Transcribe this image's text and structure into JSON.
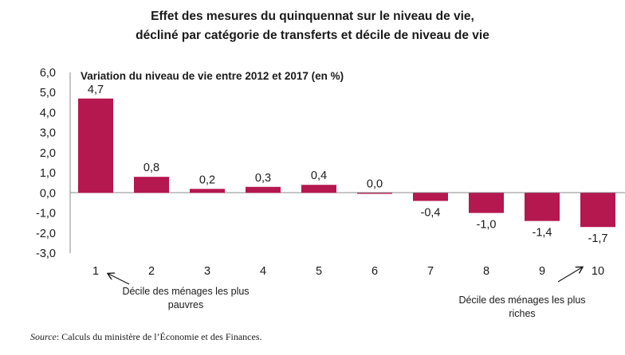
{
  "title_line1": "Effet des mesures du quinquennat sur le niveau de vie,",
  "title_line2": "décliné par catégorie de transferts et décile de niveau de vie",
  "chart_data": {
    "type": "bar",
    "ylabel": "Variation du niveau de vie entre 2012 et 2017 (en %)",
    "categories": [
      "1",
      "2",
      "3",
      "4",
      "5",
      "6",
      "7",
      "8",
      "9",
      "10"
    ],
    "values": [
      4.7,
      0.8,
      0.2,
      0.3,
      0.4,
      0.0,
      -0.4,
      -1.0,
      -1.4,
      -1.7
    ],
    "value_labels": [
      "4,7",
      "0,8",
      "0,2",
      "0,3",
      "0,4",
      "0,0",
      "-0,4",
      "-1,0",
      "-1,4",
      "-1,7"
    ],
    "ylim": [
      -3.0,
      6.0
    ],
    "yticks": [
      "6,0",
      "5,0",
      "4,0",
      "3,0",
      "2,0",
      "1,0",
      "0,0",
      "-1,0",
      "-2,0",
      "-3,0"
    ],
    "ytick_values": [
      6,
      5,
      4,
      3,
      2,
      1,
      0,
      -1,
      -2,
      -3
    ],
    "bar_color": "#b5174f",
    "grid": false
  },
  "annotations": {
    "left": "Décile des ménages les plus pauvres",
    "right": "Décile des ménages les plus riches"
  },
  "source": {
    "prefix": "Source",
    "text": ": Calculs du ministère de l’Économie et des Finances."
  }
}
